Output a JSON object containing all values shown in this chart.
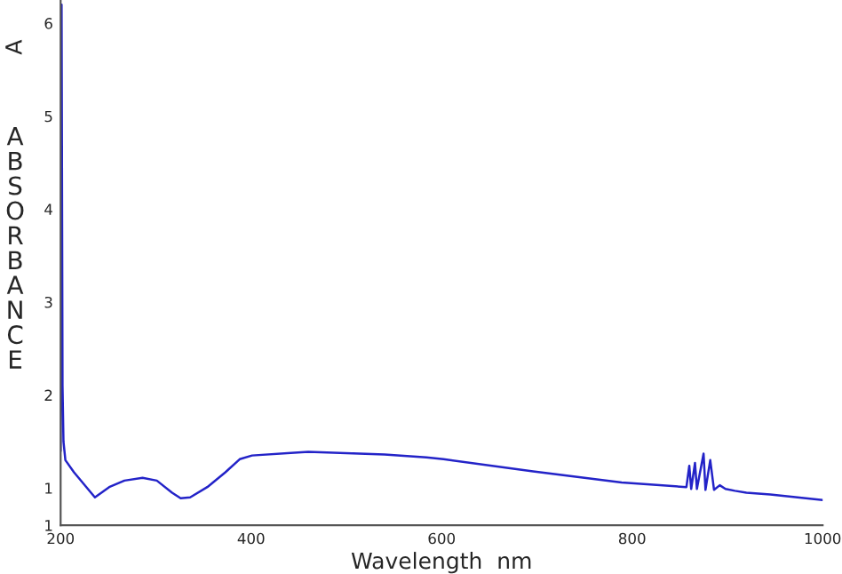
{
  "chart_data": {
    "type": "line",
    "xlabel": "Wavelength  nm",
    "ylabel": "A",
    "annotations": [
      "ABSORBANCE"
    ],
    "x": [
      200,
      201,
      202,
      203,
      205,
      214,
      236,
      251,
      267,
      286,
      301,
      317,
      326,
      336,
      354,
      373,
      388,
      401,
      460,
      540,
      584,
      602,
      696,
      789,
      857,
      860,
      862,
      866,
      868,
      875,
      877,
      882,
      886,
      892,
      898,
      908,
      920,
      945,
      1000
    ],
    "series": [
      {
        "color": "#2323c8",
        "values": [
          1.4,
          6.2,
          2.1,
          1.5,
          1.3,
          1.17,
          0.9,
          1.01,
          1.08,
          1.11,
          1.08,
          0.95,
          0.89,
          0.9,
          1.01,
          1.17,
          1.31,
          1.35,
          1.39,
          1.36,
          1.33,
          1.31,
          1.18,
          1.06,
          1.01,
          1.24,
          0.99,
          1.27,
          0.99,
          1.37,
          0.98,
          1.3,
          0.98,
          1.03,
          0.99,
          0.97,
          0.95,
          0.93,
          0.87
        ]
      }
    ],
    "xlim": [
      200,
      1000
    ],
    "xticks": [
      200,
      400,
      600,
      800,
      1000
    ],
    "ylim": [
      0.6,
      6.25
    ],
    "yticks": [
      {
        "value": 0.6,
        "label": "1"
      },
      1,
      2,
      3,
      4,
      5,
      6
    ],
    "grid": false,
    "legend": false,
    "line_style": "solid",
    "marker": "none"
  }
}
